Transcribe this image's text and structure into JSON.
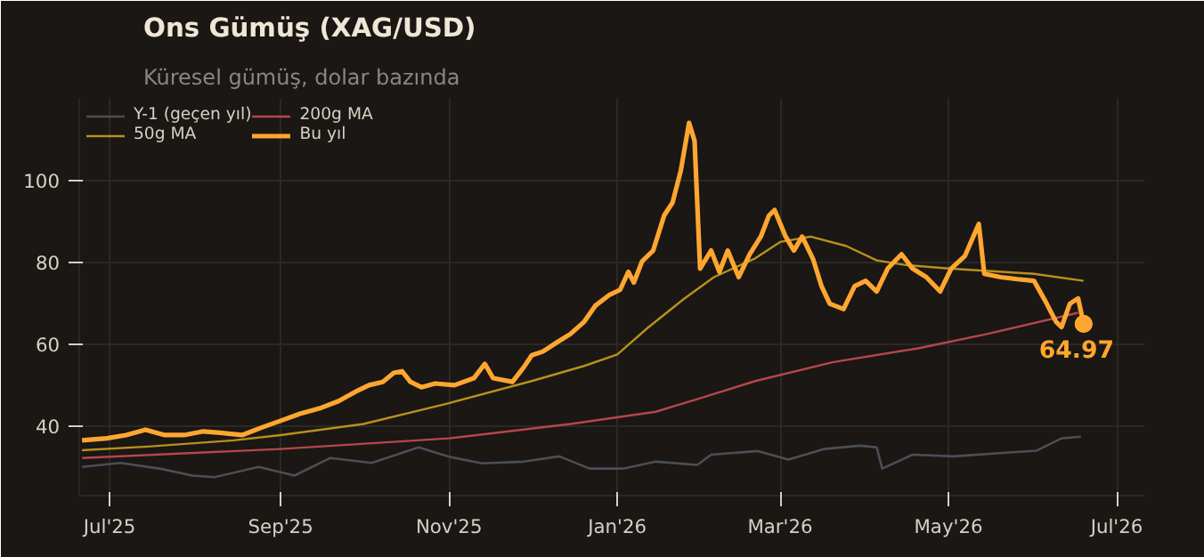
{
  "chart_data": {
    "type": "line",
    "title": "Ons Gümüş (XAG/USD)",
    "subtitle": "Küresel gümüş, dolar bazında",
    "xlim": [
      "2025-06-20",
      "2026-07-11"
    ],
    "ylim": [
      23,
      120
    ],
    "xticks": [
      {
        "value": "2025-07-01",
        "label": "Jul'25"
      },
      {
        "value": "2025-09-01",
        "label": "Sep'25"
      },
      {
        "value": "2025-11-01",
        "label": "Nov'25"
      },
      {
        "value": "2026-01-01",
        "label": "Jan'26"
      },
      {
        "value": "2026-03-01",
        "label": "Mar'26"
      },
      {
        "value": "2026-05-01",
        "label": "May'26"
      },
      {
        "value": "2026-07-01",
        "label": "Jul'26"
      }
    ],
    "yticks": [
      40,
      60,
      80,
      100
    ],
    "grid": true,
    "legend": "top left",
    "line_style": "solid",
    "marker": "none",
    "series": [
      {
        "name": "Y-1 (geçen yıl)",
        "color": "#4a4f57",
        "x": [
          "2025-06-21",
          "2025-07-05",
          "2025-07-20",
          "2025-07-31",
          "2025-08-08",
          "2025-08-24",
          "2025-09-06",
          "2025-09-19",
          "2025-10-04",
          "2025-10-21",
          "2025-11-01",
          "2025-11-13",
          "2025-11-28",
          "2025-12-11",
          "2025-12-22",
          "2026-01-03",
          "2026-01-15",
          "2026-01-30",
          "2026-02-04",
          "2026-02-21",
          "2026-03-04",
          "2026-03-17",
          "2026-03-30",
          "2026-04-05",
          "2026-04-07",
          "2026-04-18",
          "2026-05-03",
          "2026-05-22",
          "2026-06-02",
          "2026-06-11",
          "2026-06-18"
        ],
        "values": [
          30.0,
          31.0,
          29.5,
          27.9,
          27.5,
          30.0,
          27.9,
          32.2,
          31.0,
          34.8,
          32.5,
          30.9,
          31.3,
          32.6,
          29.6,
          29.6,
          31.3,
          30.5,
          33.0,
          33.9,
          31.8,
          34.4,
          35.2,
          34.8,
          29.6,
          33.0,
          32.6,
          33.5,
          34.0,
          37.0,
          37.4
        ]
      },
      {
        "name": "200g MA",
        "color": "#b5474b",
        "x": [
          "2025-06-21",
          "2025-09-01",
          "2025-11-01",
          "2025-12-15",
          "2026-01-15",
          "2026-02-01",
          "2026-02-20",
          "2026-03-20",
          "2026-04-20",
          "2026-05-15",
          "2026-06-17"
        ],
        "values": [
          32.2,
          34.4,
          37.0,
          40.5,
          43.5,
          47.0,
          51.0,
          55.6,
          59.0,
          62.5,
          67.7
        ]
      },
      {
        "name": "50g MA",
        "color": "#b8901c",
        "x": [
          "2025-06-21",
          "2025-07-15",
          "2025-08-15",
          "2025-09-01",
          "2025-10-01",
          "2025-11-01",
          "2025-12-01",
          "2025-12-20",
          "2026-01-01",
          "2026-01-12",
          "2026-01-25",
          "2026-02-05",
          "2026-02-20",
          "2026-03-01",
          "2026-03-12",
          "2026-03-25",
          "2026-04-05",
          "2026-04-15",
          "2026-05-01",
          "2026-06-01",
          "2026-06-19"
        ],
        "values": [
          34.1,
          35.0,
          36.5,
          37.8,
          40.5,
          45.6,
          51.0,
          54.7,
          57.5,
          64.0,
          71.0,
          76.4,
          81.0,
          85.0,
          86.3,
          84.0,
          80.5,
          79.4,
          78.5,
          77.2,
          75.5
        ]
      },
      {
        "name": "Bu yıl",
        "color": "#ffa630",
        "x": [
          "2025-06-21",
          "2025-06-30",
          "2025-07-07",
          "2025-07-14",
          "2025-07-21",
          "2025-07-28",
          "2025-08-04",
          "2025-08-11",
          "2025-08-18",
          "2025-08-25",
          "2025-09-01",
          "2025-09-08",
          "2025-09-15",
          "2025-09-22",
          "2025-09-29",
          "2025-10-03",
          "2025-10-08",
          "2025-10-12",
          "2025-10-15",
          "2025-10-18",
          "2025-10-22",
          "2025-10-27",
          "2025-11-03",
          "2025-11-10",
          "2025-11-14",
          "2025-11-17",
          "2025-11-24",
          "2025-11-28",
          "2025-12-01",
          "2025-12-05",
          "2025-12-10",
          "2025-12-15",
          "2025-12-20",
          "2025-12-24",
          "2025-12-29",
          "2026-01-02",
          "2026-01-05",
          "2026-01-07",
          "2026-01-10",
          "2026-01-14",
          "2026-01-18",
          "2026-01-21",
          "2026-01-24",
          "2026-01-27",
          "2026-01-29",
          "2026-01-31",
          "2026-02-04",
          "2026-02-07",
          "2026-02-10",
          "2026-02-14",
          "2026-02-18",
          "2026-02-22",
          "2026-02-25",
          "2026-02-27",
          "2026-03-03",
          "2026-03-06",
          "2026-03-09",
          "2026-03-13",
          "2026-03-16",
          "2026-03-19",
          "2026-03-24",
          "2026-03-28",
          "2026-04-01",
          "2026-04-05",
          "2026-04-09",
          "2026-04-14",
          "2026-04-18",
          "2026-04-23",
          "2026-04-28",
          "2026-05-02",
          "2026-05-07",
          "2026-05-12",
          "2026-05-14",
          "2026-05-20",
          "2026-05-26",
          "2026-06-01",
          "2026-06-05",
          "2026-06-09",
          "2026-06-11",
          "2026-06-14",
          "2026-06-17",
          "2026-06-19"
        ],
        "values": [
          36.5,
          37.0,
          37.8,
          39.1,
          37.8,
          37.8,
          38.7,
          38.3,
          37.8,
          39.6,
          41.3,
          43.0,
          44.3,
          46.1,
          48.7,
          50.0,
          50.8,
          53.0,
          53.4,
          50.8,
          49.5,
          50.4,
          50.0,
          51.7,
          55.2,
          51.7,
          50.8,
          54.3,
          57.3,
          58.2,
          60.4,
          62.5,
          65.5,
          69.4,
          72.0,
          73.3,
          77.7,
          75.1,
          80.3,
          82.9,
          91.5,
          94.6,
          102.4,
          114.1,
          109.7,
          78.5,
          82.9,
          77.7,
          82.9,
          76.4,
          82.0,
          86.3,
          91.5,
          92.8,
          86.3,
          82.9,
          86.3,
          80.7,
          74.2,
          69.9,
          68.6,
          74.2,
          75.5,
          72.9,
          78.5,
          82.0,
          78.5,
          76.4,
          72.9,
          78.5,
          81.6,
          89.4,
          77.2,
          76.4,
          75.9,
          75.5,
          70.7,
          65.5,
          64.2,
          69.9,
          71.2,
          64.97
        ]
      }
    ],
    "annotations": [
      {
        "text": "64.97",
        "x": "2026-06-19",
        "y": 64.97
      }
    ]
  }
}
